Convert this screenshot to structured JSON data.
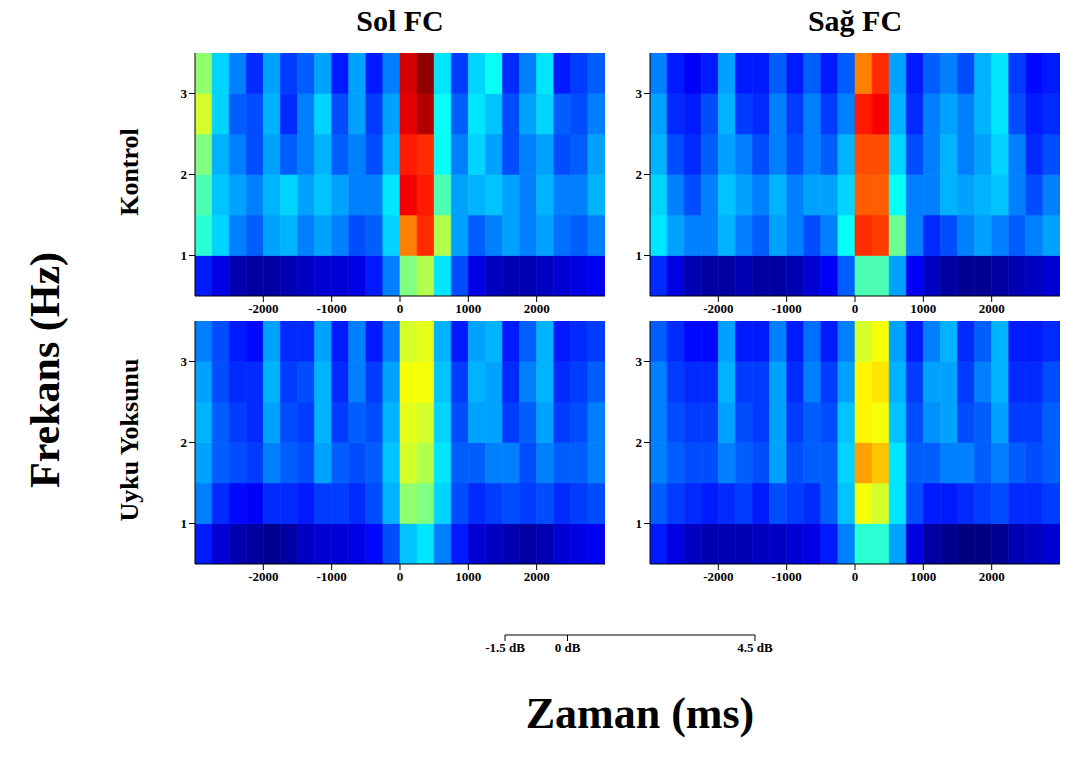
{
  "chart_data": {
    "type": "heatmap",
    "xlabel": "Zaman (ms)",
    "ylabel": "Frekans (Hz)",
    "columns": [
      "Sol FC",
      "Sağ FC"
    ],
    "rows": [
      "Kontrol",
      "Uyku Yoksunu"
    ],
    "xlim": [
      -3000,
      3000
    ],
    "xticks": [
      -2000,
      -1000,
      0,
      1000,
      2000
    ],
    "ylim": [
      0.5,
      3.5
    ],
    "yticks": [
      1,
      2,
      3
    ],
    "x_edges": [
      -3000,
      -2750,
      -2500,
      -2250,
      -2000,
      -1750,
      -1500,
      -1250,
      -1000,
      -750,
      -500,
      -250,
      0,
      250,
      500,
      750,
      1000,
      1250,
      1500,
      1750,
      2000,
      2250,
      2500,
      2750,
      3000
    ],
    "y_edges": [
      0.5,
      1,
      1.5,
      2,
      2.5,
      3,
      3.5
    ],
    "colorbar": {
      "range": [
        -1.5,
        4.5
      ],
      "ticks": [
        {
          "value": -1.5,
          "label": "-1.5 dB"
        },
        {
          "value": 0,
          "label": "0 dB"
        },
        {
          "value": 4.5,
          "label": "4.5 dB"
        }
      ]
    },
    "panels": [
      [
        [
          [
            -0.6,
            -0.9,
            -1.2,
            -1.3,
            -1.3,
            -1.2,
            -1.1,
            -1.0,
            -1.0,
            -0.9,
            -0.6,
            0.0,
            1.5,
            1.8,
            0.6,
            -0.3,
            -0.9,
            -1.1,
            -1.2,
            -1.2,
            -1.1,
            -1.0,
            -0.9,
            -0.8
          ],
          [
            1.0,
            0.5,
            0.0,
            -0.2,
            0.2,
            0.3,
            0.0,
            0.2,
            0.0,
            -0.3,
            -0.2,
            0.5,
            3.0,
            3.5,
            1.8,
            0.2,
            -0.2,
            0.0,
            0.2,
            0.0,
            0.2,
            -0.1,
            -0.2,
            0.0
          ],
          [
            1.2,
            0.4,
            0.2,
            0.0,
            0.3,
            0.5,
            0.2,
            0.4,
            0.2,
            0.0,
            0.0,
            0.6,
            3.8,
            3.6,
            1.2,
            0.2,
            0.3,
            0.4,
            0.2,
            0.0,
            0.3,
            0.0,
            0.0,
            0.3
          ],
          [
            1.5,
            0.3,
            0.0,
            -0.3,
            0.2,
            -0.2,
            0.0,
            0.3,
            -0.2,
            0.0,
            -0.3,
            0.3,
            3.6,
            3.5,
            0.8,
            0.0,
            0.5,
            0.2,
            -0.3,
            0.0,
            0.2,
            -0.3,
            -0.2,
            0.2
          ],
          [
            2.0,
            0.5,
            -0.2,
            -0.3,
            0.3,
            -0.5,
            0.0,
            0.5,
            -0.3,
            0.2,
            -0.4,
            0.2,
            3.9,
            4.2,
            0.8,
            -0.2,
            0.6,
            0.4,
            -0.3,
            0.2,
            0.5,
            -0.2,
            -0.3,
            0.0
          ],
          [
            1.6,
            0.5,
            0.0,
            -0.5,
            0.2,
            -0.4,
            -0.2,
            0.2,
            -0.6,
            0.2,
            -0.6,
            0.0,
            4.0,
            4.4,
            0.6,
            -0.4,
            0.5,
            0.8,
            -0.5,
            0.0,
            0.6,
            -0.6,
            -0.4,
            -0.2
          ]
        ],
        [
          [
            -0.5,
            -0.9,
            -1.2,
            -1.3,
            -1.3,
            -1.2,
            -1.3,
            -1.3,
            -1.2,
            -1.0,
            -0.8,
            -0.2,
            1.2,
            1.2,
            0.2,
            -0.8,
            -1.1,
            -1.3,
            -1.4,
            -1.4,
            -1.3,
            -1.2,
            -1.1,
            -1.0
          ],
          [
            0.6,
            0.2,
            0.0,
            0.0,
            0.3,
            0.0,
            -0.2,
            0.2,
            0.0,
            -0.3,
            0.0,
            0.8,
            3.5,
            3.4,
            1.4,
            0.0,
            -0.5,
            -0.3,
            0.0,
            0.2,
            0.0,
            -0.2,
            0.0,
            0.2
          ],
          [
            0.5,
            0.0,
            -0.3,
            0.0,
            0.4,
            0.2,
            0.0,
            0.3,
            0.0,
            0.2,
            0.2,
            0.5,
            3.2,
            3.2,
            0.8,
            0.0,
            0.0,
            0.3,
            0.2,
            0.3,
            0.4,
            0.0,
            -0.3,
            0.0
          ],
          [
            0.3,
            -0.3,
            -0.5,
            -0.2,
            0.2,
            0.0,
            -0.3,
            0.0,
            -0.3,
            0.0,
            -0.2,
            0.3,
            3.3,
            3.3,
            0.5,
            -0.3,
            0.0,
            0.3,
            0.0,
            0.2,
            0.5,
            0.0,
            -0.5,
            -0.3
          ],
          [
            0.2,
            -0.5,
            -0.6,
            -0.3,
            0.3,
            -0.4,
            -0.5,
            0.0,
            -0.4,
            0.0,
            -0.4,
            0.0,
            3.6,
            3.8,
            0.3,
            -0.5,
            0.0,
            0.2,
            0.0,
            0.3,
            0.6,
            -0.3,
            -0.6,
            -0.5
          ],
          [
            0.0,
            -0.6,
            -0.8,
            -0.6,
            0.2,
            -0.6,
            -0.6,
            -0.2,
            -0.6,
            -0.2,
            -0.6,
            -0.2,
            3.0,
            3.5,
            0.2,
            -0.6,
            -0.2,
            0.0,
            -0.3,
            0.3,
            0.6,
            -0.4,
            -0.7,
            -0.6
          ]
        ]
      ],
      [
        [
          [
            -0.6,
            -1.0,
            -1.2,
            -1.3,
            -1.4,
            -1.3,
            -1.1,
            -1.0,
            -1.0,
            -0.9,
            -0.7,
            -0.3,
            0.4,
            0.6,
            0.0,
            -0.6,
            -1.0,
            -1.1,
            -1.2,
            -1.3,
            -1.2,
            -1.0,
            -0.9,
            -0.8
          ],
          [
            0.0,
            -0.5,
            -0.7,
            -0.8,
            -0.5,
            -0.5,
            -0.6,
            -0.4,
            -0.4,
            -0.5,
            -0.3,
            0.3,
            1.6,
            1.5,
            0.5,
            -0.3,
            -0.5,
            -0.4,
            -0.3,
            -0.4,
            -0.3,
            -0.5,
            -0.4,
            -0.3
          ],
          [
            0.2,
            -0.2,
            -0.3,
            -0.4,
            0.0,
            -0.2,
            -0.3,
            0.2,
            -0.2,
            -0.3,
            -0.2,
            0.4,
            2.0,
            1.8,
            0.6,
            -0.2,
            -0.2,
            0.0,
            0.0,
            -0.3,
            0.0,
            -0.2,
            -0.2,
            0.0
          ],
          [
            0.3,
            -0.2,
            -0.4,
            -0.5,
            0.2,
            -0.3,
            -0.4,
            0.3,
            -0.4,
            -0.2,
            -0.3,
            0.3,
            2.1,
            2.0,
            0.5,
            -0.3,
            0.2,
            0.2,
            -0.4,
            -0.2,
            0.2,
            -0.4,
            -0.3,
            0.0
          ],
          [
            0.2,
            -0.3,
            -0.5,
            -0.5,
            0.3,
            -0.4,
            -0.3,
            0.3,
            -0.5,
            0.0,
            -0.4,
            0.2,
            2.2,
            2.2,
            0.4,
            -0.4,
            0.3,
            0.2,
            -0.5,
            0.0,
            0.3,
            -0.5,
            -0.4,
            -0.2
          ],
          [
            0.0,
            -0.3,
            -0.6,
            -0.7,
            0.2,
            -0.5,
            -0.5,
            0.2,
            -0.6,
            0.0,
            -0.6,
            0.0,
            2.0,
            2.1,
            0.3,
            -0.6,
            0.2,
            0.3,
            -0.6,
            -0.2,
            0.3,
            -0.6,
            -0.5,
            -0.4
          ]
        ],
        [
          [
            -0.6,
            -0.9,
            -1.1,
            -1.2,
            -1.2,
            -1.2,
            -1.1,
            -1.1,
            -1.0,
            -0.9,
            -0.6,
            0.0,
            1.0,
            1.0,
            0.2,
            -0.9,
            -1.3,
            -1.4,
            -1.5,
            -1.5,
            -1.4,
            -1.2,
            -1.1,
            -1.0
          ],
          [
            -0.2,
            -0.4,
            -0.5,
            -0.6,
            -0.5,
            -0.4,
            -0.6,
            -0.3,
            -0.4,
            -0.5,
            -0.2,
            0.4,
            2.2,
            2.0,
            0.6,
            -0.3,
            -0.6,
            -0.6,
            -0.5,
            -0.4,
            -0.3,
            -0.5,
            -0.5,
            -0.4
          ],
          [
            0.0,
            -0.2,
            -0.3,
            -0.3,
            0.0,
            -0.2,
            -0.3,
            0.2,
            -0.3,
            -0.2,
            -0.2,
            0.5,
            2.8,
            2.6,
            0.6,
            -0.2,
            -0.2,
            0.0,
            0.0,
            -0.2,
            0.0,
            -0.2,
            -0.3,
            -0.2
          ],
          [
            0.0,
            -0.3,
            -0.4,
            -0.4,
            0.2,
            -0.3,
            -0.4,
            0.2,
            -0.4,
            -0.2,
            -0.3,
            0.4,
            2.3,
            2.2,
            0.4,
            -0.3,
            0.1,
            0.2,
            -0.3,
            -0.2,
            0.2,
            -0.4,
            -0.4,
            -0.2
          ],
          [
            0.0,
            -0.4,
            -0.5,
            -0.5,
            0.3,
            -0.4,
            -0.4,
            0.2,
            -0.5,
            0.0,
            -0.4,
            0.2,
            2.3,
            2.4,
            0.3,
            -0.4,
            0.2,
            0.2,
            -0.4,
            0.0,
            0.3,
            -0.5,
            -0.5,
            -0.3
          ],
          [
            -0.2,
            -0.5,
            -0.7,
            -0.7,
            0.2,
            -0.6,
            -0.6,
            0.0,
            -0.6,
            -0.1,
            -0.6,
            0.0,
            2.0,
            2.2,
            0.2,
            -0.6,
            0.0,
            0.3,
            -0.5,
            -0.2,
            0.3,
            -0.6,
            -0.6,
            -0.5
          ]
        ]
      ]
    ]
  }
}
